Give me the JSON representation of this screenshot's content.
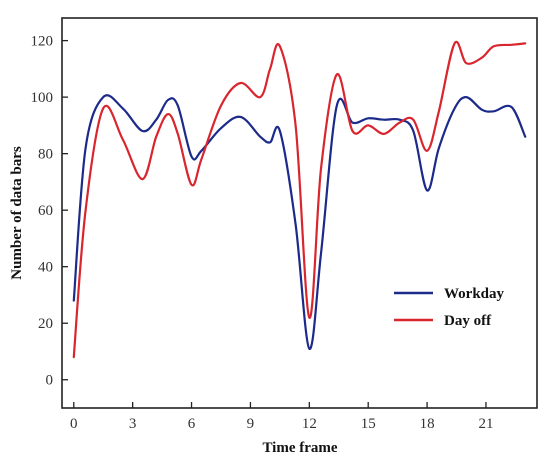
{
  "chart_data": {
    "type": "line",
    "title": "",
    "xlabel": "Time frame",
    "ylabel": "Number of data bars",
    "xlim": [
      -0.6,
      23.6
    ],
    "ylim": [
      -10,
      128
    ],
    "xticks": [
      0,
      3,
      6,
      9,
      12,
      15,
      18,
      21
    ],
    "yticks": [
      0,
      20,
      40,
      60,
      80,
      100,
      120
    ],
    "x": [
      0,
      0.6,
      1.5,
      2.5,
      3.5,
      4.2,
      4.8,
      5.3,
      6.0,
      6.5,
      7.5,
      8.5,
      9.5,
      10.0,
      10.5,
      11.3,
      12.0,
      12.6,
      13.4,
      14.2,
      15.0,
      15.8,
      16.6,
      17.3,
      18.0,
      18.6,
      19.4,
      20.0,
      20.8,
      21.4,
      22.3,
      23.0
    ],
    "series": [
      {
        "name": "Workday",
        "color": "#1c2a8a",
        "values": [
          28,
          82,
          100,
          96,
          88,
          92,
          99,
          97,
          79,
          81,
          89,
          93,
          86,
          84,
          88,
          55,
          11,
          45,
          97,
          91,
          92.5,
          92,
          92,
          88,
          67,
          82,
          96,
          100,
          95.5,
          95,
          96.5,
          86
        ]
      },
      {
        "name": "Day off",
        "color": "#d9262e",
        "values": [
          8,
          60,
          96,
          85,
          71,
          86,
          94,
          87,
          69,
          78,
          97,
          105,
          100,
          110,
          118,
          90,
          22,
          75,
          108,
          88,
          90,
          87,
          91,
          92,
          81,
          95,
          119,
          112,
          114,
          118,
          118.5,
          119
        ]
      }
    ],
    "legend": "lower-right",
    "grid": false
  }
}
